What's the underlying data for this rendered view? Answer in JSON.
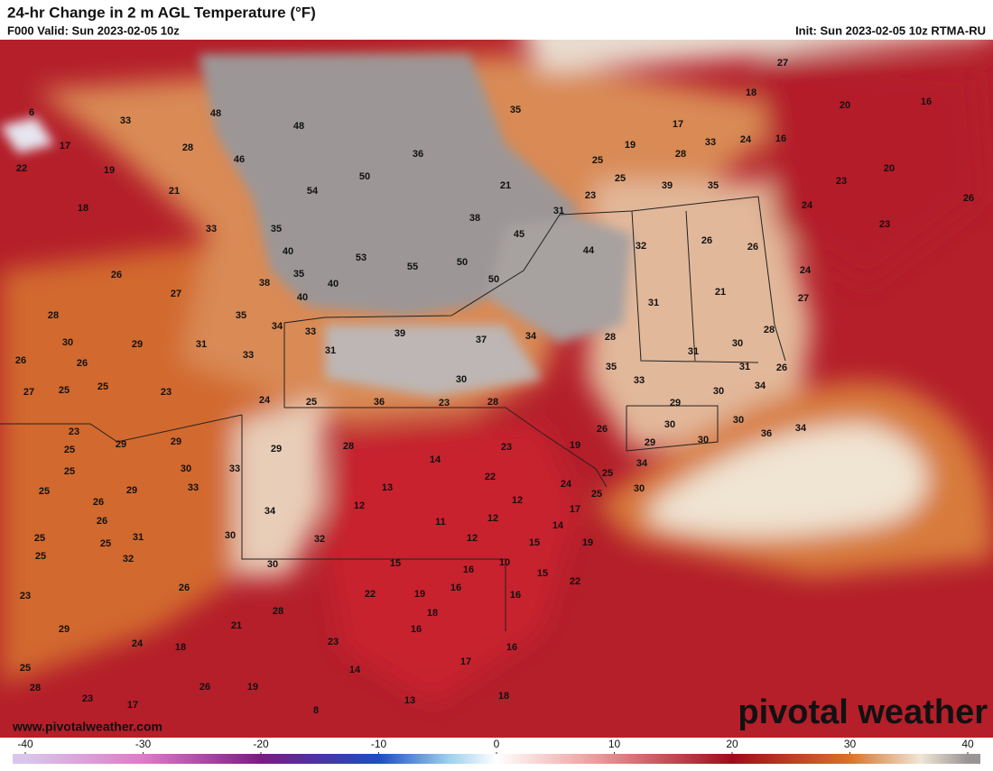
{
  "header": {
    "title": "24-hr Change in 2 m AGL Temperature (°F)",
    "valid": "F000 Valid: Sun 2023-02-05 10z",
    "init": "Init: Sun 2023-02-05 10z RTMA-RU"
  },
  "watermark": {
    "site": "www.pivotalweather.com",
    "logo": "pivotal weather"
  },
  "colorbar": {
    "ticks": [
      -40,
      -30,
      -20,
      -10,
      0,
      10,
      20,
      30,
      40
    ],
    "lim": [
      -40,
      40
    ]
  },
  "map_labels": [
    6,
    33,
    48,
    48,
    35,
    27,
    18,
    20,
    16,
    17,
    28,
    46,
    36,
    17,
    19,
    33,
    24,
    16,
    22,
    19,
    50,
    54,
    25,
    28,
    20,
    25,
    39,
    35,
    23,
    21,
    21,
    23,
    26,
    18,
    38,
    31,
    24,
    33,
    35,
    45,
    44,
    32,
    26,
    26,
    23,
    40,
    53,
    55,
    50,
    50,
    24,
    26,
    35,
    38,
    40,
    27,
    40,
    21,
    27,
    28,
    35,
    34,
    33,
    39,
    37,
    34,
    31,
    28,
    28,
    30,
    29,
    31,
    33,
    31,
    30,
    31,
    26,
    26,
    35,
    30,
    31,
    26,
    27,
    25,
    25,
    23,
    33,
    34,
    30,
    24,
    25,
    36,
    23,
    28,
    29,
    23,
    29,
    29,
    30,
    30,
    26,
    36,
    34,
    25,
    29,
    28,
    23,
    19,
    29,
    30,
    25,
    30,
    33,
    14,
    22,
    34,
    25,
    25,
    33,
    29,
    13,
    24,
    25,
    30,
    26,
    12,
    12,
    17,
    26,
    34,
    11,
    12,
    14,
    25,
    25,
    31,
    30,
    32,
    12,
    15,
    19,
    25,
    32,
    30,
    15,
    10,
    16,
    15,
    26,
    22,
    19,
    16,
    16,
    22,
    23,
    28,
    18,
    21,
    16,
    29,
    24,
    18,
    23,
    16,
    14,
    17,
    25,
    28,
    26,
    19,
    23,
    17,
    13,
    18,
    8
  ]
}
